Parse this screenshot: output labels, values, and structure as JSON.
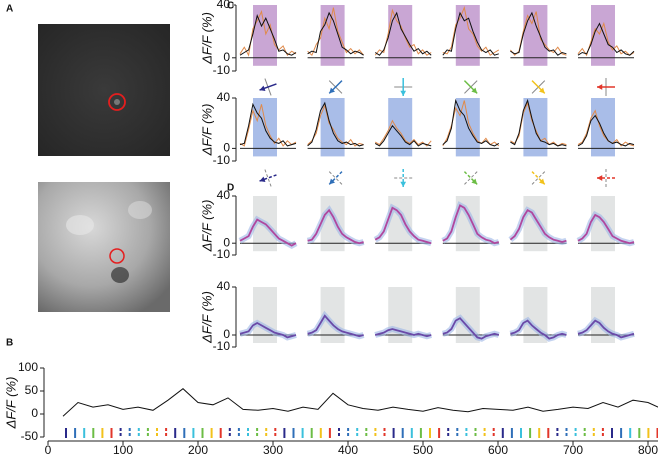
{
  "chart_data": [
    {
      "type": "line",
      "panel_label": "C",
      "y_label": "ΔF/F (%)",
      "ylim": [
        -10,
        40
      ],
      "yticks": [
        40,
        0,
        -10
      ],
      "shade_color": "#c9a6d4",
      "series": [
        {
          "color": "#e08a4a",
          "values": [
            3,
            8,
            2,
            22,
            28,
            35,
            18,
            25,
            10,
            6,
            9,
            2,
            5,
            3
          ]
        },
        {
          "color": "#e08a4a",
          "values": [
            5,
            2,
            10,
            15,
            30,
            22,
            38,
            20,
            12,
            4,
            7,
            3,
            6,
            2
          ]
        },
        {
          "color": "#e08a4a",
          "values": [
            2,
            6,
            4,
            18,
            36,
            28,
            24,
            15,
            8,
            10,
            3,
            6,
            2,
            4
          ]
        },
        {
          "color": "#e08a4a",
          "values": [
            4,
            3,
            8,
            25,
            30,
            38,
            22,
            18,
            9,
            5,
            8,
            2,
            4,
            6
          ]
        },
        {
          "color": "#e08a4a",
          "values": [
            6,
            2,
            5,
            20,
            32,
            26,
            35,
            14,
            10,
            6,
            4,
            8,
            3,
            2
          ]
        },
        {
          "color": "#e08a4a",
          "values": [
            3,
            7,
            2,
            12,
            22,
            18,
            26,
            12,
            6,
            9,
            3,
            5,
            2,
            4
          ]
        },
        {
          "color": "#111111",
          "values": [
            2,
            4,
            6,
            18,
            32,
            24,
            30,
            22,
            14,
            5,
            6,
            3,
            2,
            4
          ]
        },
        {
          "color": "#111111",
          "values": [
            3,
            5,
            4,
            20,
            25,
            34,
            28,
            18,
            8,
            6,
            3,
            5,
            4,
            2
          ]
        },
        {
          "color": "#111111",
          "values": [
            4,
            2,
            6,
            15,
            28,
            34,
            22,
            16,
            10,
            5,
            7,
            3,
            5,
            2
          ]
        },
        {
          "color": "#111111",
          "values": [
            2,
            6,
            5,
            22,
            34,
            28,
            30,
            20,
            12,
            6,
            4,
            6,
            2,
            3
          ]
        },
        {
          "color": "#111111",
          "values": [
            5,
            3,
            4,
            18,
            28,
            34,
            24,
            16,
            8,
            5,
            6,
            2,
            4,
            3
          ]
        },
        {
          "color": "#111111",
          "values": [
            2,
            4,
            3,
            10,
            20,
            26,
            18,
            10,
            8,
            4,
            6,
            3,
            2,
            5
          ]
        }
      ]
    },
    {
      "type": "line",
      "y_label": "ΔF/F (%)",
      "ylim": [
        -10,
        40
      ],
      "yticks": [
        40,
        0,
        -10
      ],
      "shade_color": "#a9bde8",
      "series": [
        {
          "color": "#e08a4a",
          "values": [
            4,
            2,
            15,
            30,
            22,
            35,
            18,
            10,
            4,
            8,
            2,
            6,
            3,
            5
          ]
        },
        {
          "color": "#e08a4a",
          "values": [
            3,
            6,
            12,
            26,
            34,
            20,
            15,
            8,
            5,
            3,
            7,
            2,
            4,
            3
          ]
        },
        {
          "color": "#e08a4a",
          "values": [
            5,
            3,
            8,
            14,
            22,
            16,
            12,
            6,
            4,
            7,
            3,
            5,
            2,
            6
          ]
        },
        {
          "color": "#e08a4a",
          "values": [
            2,
            8,
            18,
            32,
            26,
            38,
            20,
            12,
            6,
            4,
            8,
            3,
            5,
            2
          ]
        },
        {
          "color": "#e08a4a",
          "values": [
            6,
            4,
            10,
            28,
            36,
            22,
            14,
            6,
            8,
            3,
            5,
            2,
            4,
            3
          ]
        },
        {
          "color": "#e08a4a",
          "values": [
            3,
            5,
            12,
            24,
            30,
            18,
            10,
            6,
            4,
            7,
            2,
            5,
            3,
            2
          ]
        },
        {
          "color": "#111111",
          "values": [
            3,
            4,
            18,
            35,
            28,
            24,
            14,
            8,
            5,
            4,
            6,
            2,
            3,
            4
          ]
        },
        {
          "color": "#111111",
          "values": [
            2,
            5,
            15,
            30,
            36,
            22,
            12,
            6,
            4,
            5,
            3,
            4,
            2,
            3
          ]
        },
        {
          "color": "#111111",
          "values": [
            4,
            2,
            6,
            12,
            18,
            14,
            10,
            5,
            3,
            6,
            2,
            4,
            3,
            2
          ]
        },
        {
          "color": "#111111",
          "values": [
            3,
            6,
            16,
            38,
            30,
            26,
            16,
            10,
            5,
            4,
            6,
            3,
            2,
            4
          ]
        },
        {
          "color": "#111111",
          "values": [
            5,
            3,
            12,
            30,
            38,
            24,
            12,
            6,
            5,
            3,
            4,
            2,
            3,
            2
          ]
        },
        {
          "color": "#111111",
          "values": [
            2,
            4,
            10,
            22,
            26,
            20,
            12,
            6,
            4,
            5,
            3,
            2,
            4,
            3
          ]
        }
      ]
    },
    {
      "type": "line",
      "panel_label": "D",
      "y_label": "ΔF/F (%)",
      "ylim": [
        -10,
        40
      ],
      "yticks": [
        40,
        0,
        -10
      ],
      "shade_color": "#e2e4e4",
      "series": [
        {
          "color": "#b0479e",
          "values": [
            2,
            4,
            6,
            14,
            20,
            18,
            16,
            12,
            8,
            4,
            2,
            0,
            -2,
            0
          ]
        },
        {
          "color": "#b0479e",
          "values": [
            2,
            3,
            8,
            16,
            24,
            28,
            22,
            14,
            8,
            5,
            3,
            1,
            0,
            1
          ]
        },
        {
          "color": "#b0479e",
          "values": [
            3,
            5,
            10,
            20,
            30,
            28,
            24,
            16,
            10,
            6,
            3,
            2,
            1,
            0
          ]
        },
        {
          "color": "#b0479e",
          "values": [
            2,
            4,
            10,
            22,
            32,
            30,
            24,
            16,
            8,
            5,
            3,
            2,
            0,
            1
          ]
        },
        {
          "color": "#b0479e",
          "values": [
            3,
            6,
            12,
            22,
            28,
            26,
            20,
            14,
            8,
            5,
            3,
            2,
            1,
            2
          ]
        },
        {
          "color": "#b0479e",
          "values": [
            2,
            4,
            8,
            18,
            24,
            22,
            18,
            12,
            6,
            4,
            2,
            1,
            0,
            1
          ]
        }
      ]
    },
    {
      "type": "line",
      "y_label": "ΔF/F (%)",
      "ylim": [
        -10,
        40
      ],
      "yticks": [
        40,
        0,
        -10
      ],
      "shade_color": "#e2e4e4",
      "series": [
        {
          "color": "#6a4aa8",
          "values": [
            1,
            2,
            3,
            8,
            10,
            8,
            6,
            4,
            2,
            1,
            0,
            -2,
            -1,
            0
          ]
        },
        {
          "color": "#6a4aa8",
          "values": [
            1,
            2,
            4,
            10,
            16,
            12,
            8,
            5,
            3,
            2,
            1,
            0,
            -1,
            0
          ]
        },
        {
          "color": "#6a4aa8",
          "values": [
            0,
            1,
            2,
            4,
            5,
            4,
            3,
            2,
            1,
            0,
            1,
            0,
            -1,
            0
          ]
        },
        {
          "color": "#6a4aa8",
          "values": [
            1,
            2,
            5,
            12,
            14,
            10,
            6,
            2,
            -2,
            -3,
            -1,
            0,
            1,
            0
          ]
        },
        {
          "color": "#6a4aa8",
          "values": [
            1,
            2,
            4,
            10,
            12,
            8,
            5,
            2,
            0,
            -3,
            -2,
            0,
            1,
            0
          ]
        },
        {
          "color": "#6a4aa8",
          "values": [
            1,
            2,
            4,
            8,
            12,
            10,
            6,
            3,
            1,
            0,
            -2,
            -1,
            0,
            1
          ]
        }
      ]
    },
    {
      "type": "line",
      "panel_label": "B",
      "y_label": "ΔF/F (%)",
      "xlim": [
        0,
        820
      ],
      "xticks": [
        0,
        100,
        200,
        300,
        400,
        500,
        600,
        700,
        800
      ],
      "ylim": [
        -50,
        100
      ],
      "yticks": [
        100,
        50,
        0,
        -50
      ],
      "series": [
        {
          "color": "#111111",
          "x": [
            20,
            40,
            60,
            80,
            100,
            120,
            140,
            160,
            180,
            200,
            220,
            240,
            260,
            280,
            300,
            320,
            340,
            360,
            380,
            400,
            420,
            440,
            460,
            480,
            500,
            520,
            540,
            560,
            580,
            600,
            620,
            640,
            660,
            680,
            700,
            720,
            740,
            760,
            780,
            800,
            820
          ],
          "values": [
            -5,
            25,
            15,
            20,
            10,
            15,
            8,
            30,
            55,
            25,
            20,
            35,
            10,
            8,
            12,
            6,
            15,
            10,
            45,
            20,
            12,
            8,
            15,
            10,
            6,
            14,
            8,
            5,
            12,
            10,
            8,
            15,
            6,
            10,
            15,
            12,
            25,
            15,
            30,
            25,
            10
          ]
        }
      ]
    }
  ]
}
